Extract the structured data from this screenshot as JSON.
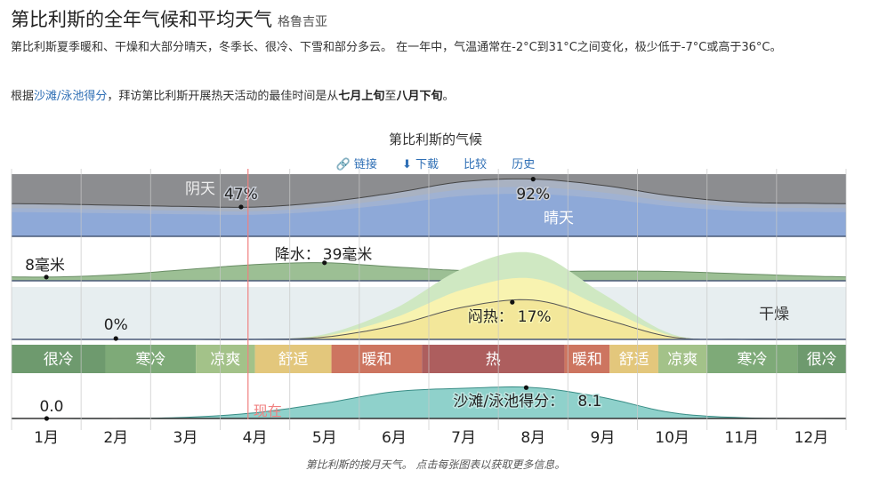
{
  "header": {
    "title": "第比利斯的全年气候和平均天气",
    "location": "格鲁吉亚"
  },
  "description": "第比利斯夏季暖和、干燥和大部分晴天，冬季长、很冷、下雪和部分多云。 在一年中，气温通常在-2°C到31°C之间变化，极少低于-7°C或高于36°C。",
  "best_time": {
    "prefix": "根据",
    "link": "沙滩/泳池得分",
    "middle": "，拜访第比利斯开展热天活动的最佳时间是从",
    "start": "七月上旬",
    "to": "至",
    "end": "八月下旬",
    "suffix": "。"
  },
  "chart_title": "第比利斯的气候",
  "toolbar": {
    "link": "链接",
    "download": "下载",
    "compare": "比较",
    "history": "历史"
  },
  "caption": "第比利斯的按月天气。 点击每张图表以获取更多信息。",
  "colors": {
    "cloud_dark": "#8c8d90",
    "clear_blue": "#8ea9d8",
    "precip_green": "#9cbf94",
    "muggy_yellow": "#f8f3b0",
    "muggy_green": "#cfe8c2",
    "dry_bg": "#e7eef0",
    "beach_teal": "#8fd1cb",
    "now_line": "#f08080"
  },
  "chart_data": {
    "type": "area",
    "months": [
      "1月",
      "2月",
      "3月",
      "4月",
      "5月",
      "6月",
      "7月",
      "8月",
      "9月",
      "10月",
      "11月",
      "12月"
    ],
    "now_label": "现在",
    "now_month_position": 3.4,
    "cloud": {
      "label_cloudy": "阴天",
      "label_clear": "晴天",
      "clear_percent": [
        52,
        50,
        48,
        47,
        55,
        70,
        88,
        92,
        82,
        65,
        55,
        53
      ],
      "min_label": "47%",
      "min_month_position": 3.3,
      "max_label": "92%",
      "max_month_position": 7.5
    },
    "precipitation": {
      "unit": "毫米",
      "values_mm": [
        8,
        13,
        24,
        35,
        39,
        30,
        22,
        20,
        21,
        20,
        15,
        10
      ],
      "min_label": "8毫米",
      "min_month_position": 0.5,
      "max_prefix": "降水：",
      "max_label": "39毫米",
      "max_month_position": 4.5
    },
    "humidity": {
      "label_dry": "干燥",
      "muggy_percent": [
        0,
        0,
        0,
        0,
        1,
        6,
        14,
        17,
        9,
        1,
        0,
        0
      ],
      "min_label": "0%",
      "min_month_position": 1.5,
      "max_prefix": "闷热：",
      "max_label": "17%",
      "max_month_position": 7.2
    },
    "temperature_bands": [
      {
        "label": "很冷",
        "start": 0.0,
        "end": 1.35,
        "color": "#6e9a6e"
      },
      {
        "label": "寒冷",
        "start": 1.35,
        "end": 2.65,
        "color": "#7eaa78"
      },
      {
        "label": "凉爽",
        "start": 2.65,
        "end": 3.5,
        "color": "#a3c289"
      },
      {
        "label": "舒适",
        "start": 3.5,
        "end": 4.6,
        "color": "#e3c77c"
      },
      {
        "label": "暖和",
        "start": 4.6,
        "end": 5.9,
        "color": "#cd7560"
      },
      {
        "label": "热",
        "start": 5.9,
        "end": 7.95,
        "color": "#ad5e5e"
      },
      {
        "label": "暖和",
        "start": 7.95,
        "end": 8.6,
        "color": "#cd7560"
      },
      {
        "label": "舒适",
        "start": 8.6,
        "end": 9.3,
        "color": "#e3c77c"
      },
      {
        "label": "凉爽",
        "start": 9.3,
        "end": 10.0,
        "color": "#a3c289"
      },
      {
        "label": "寒冷",
        "start": 10.0,
        "end": 11.3,
        "color": "#7eaa78"
      },
      {
        "label": "很冷",
        "start": 11.3,
        "end": 12.0,
        "color": "#6e9a6e"
      }
    ],
    "beach_score": {
      "values": [
        0,
        0,
        0.3,
        1.5,
        4.0,
        7.0,
        7.9,
        8.1,
        5.5,
        1.5,
        0.2,
        0
      ],
      "min_label": "0.0",
      "min_month_position": 0.3,
      "max_prefix": "沙滩/泳池得分：",
      "max_label": "8.1",
      "max_month_position": 7.4
    }
  }
}
